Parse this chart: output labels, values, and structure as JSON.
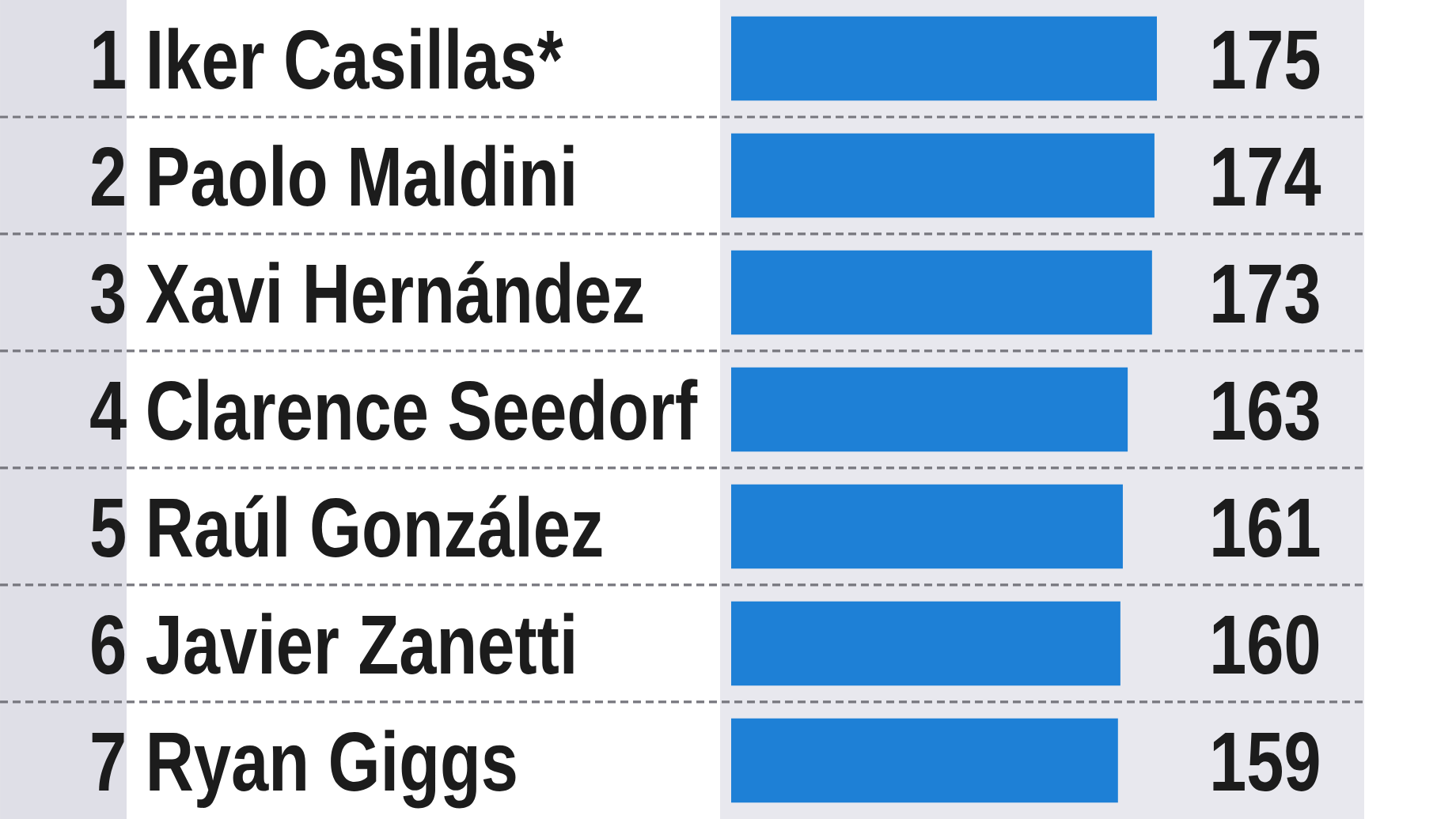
{
  "chart_data": {
    "type": "bar",
    "orientation": "horizontal",
    "categories": [
      "1 Iker Casillas*",
      "2 Paolo Maldini",
      "3 Xavi Hernández",
      "4 Clarence Seedorf",
      "5 Raúl González",
      "6 Javier Zanetti",
      "7 Ryan Giggs"
    ],
    "values": [
      175,
      174,
      173,
      163,
      161,
      160,
      159
    ],
    "color": "#1e80d6",
    "data_labels": true
  }
}
